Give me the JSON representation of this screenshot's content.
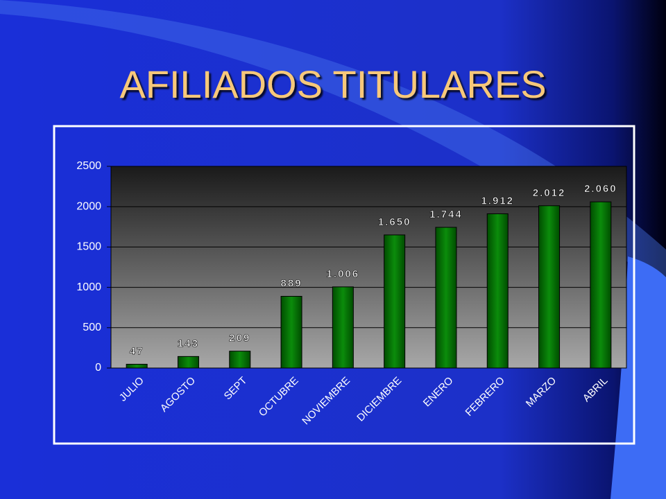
{
  "chart_data": {
    "type": "bar",
    "title": "AFILIADOS TITULARES",
    "categories": [
      "JULIO",
      "AGOSTO",
      "SEPT",
      "OCTUBRE",
      "NOVIEMBRE",
      "DICIEMBRE",
      "ENERO",
      "FEBRERO",
      "MARZO",
      "ABRIL"
    ],
    "values": [
      47,
      143,
      209,
      889,
      1006,
      1650,
      1744,
      1912,
      2012,
      2060
    ],
    "value_labels": [
      "47",
      "143",
      "209",
      "889",
      "1.006",
      "1.650",
      "1.744",
      "1.912",
      "2.012",
      "2.060"
    ],
    "color": "#0b8c0b",
    "ylim": [
      0,
      2500
    ],
    "yticks": [
      0,
      500,
      1000,
      1500,
      2000,
      2500
    ],
    "grid": true
  }
}
